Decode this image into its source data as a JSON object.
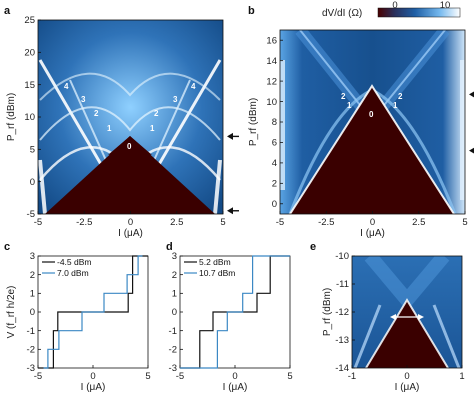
{
  "figure": {
    "panel_labels": [
      "a",
      "b",
      "c",
      "d",
      "e"
    ],
    "colorbar": {
      "label": "dV/dI (Ω)",
      "ticks": [
        "0",
        "10"
      ]
    }
  },
  "chart_data": [
    {
      "id": "a",
      "type": "heatmap",
      "xlabel": "I (μA)",
      "ylabel": "P_rf (dBm)",
      "xlim": [
        -5,
        5
      ],
      "ylim": [
        -5,
        25
      ],
      "xticks": [
        "-5",
        "-2.5",
        "0",
        "2.5",
        "5"
      ],
      "yticks": [
        "-5",
        "0",
        "5",
        "10",
        "15",
        "20",
        "25"
      ],
      "annotations": [
        "0",
        "1",
        "1",
        "2",
        "2",
        "3",
        "3",
        "4",
        "4"
      ],
      "arrows_at_prf": [
        -4.5,
        7.0
      ]
    },
    {
      "id": "b",
      "type": "heatmap",
      "xlabel": "I (μA)",
      "ylabel": "P_rf (dBm)",
      "xlim": [
        -5,
        5
      ],
      "ylim": [
        -1,
        17
      ],
      "xticks": [
        "-5",
        "-2.5",
        "0",
        "2.5",
        "5"
      ],
      "yticks": [
        "0",
        "2",
        "4",
        "6",
        "8",
        "10",
        "12",
        "14",
        "16"
      ],
      "annotations": [
        "0",
        "1",
        "1",
        "2",
        "2"
      ],
      "arrows_at_prf": [
        5.2,
        10.7
      ]
    },
    {
      "id": "c",
      "type": "line",
      "xlabel": "I (μA)",
      "ylabel": "V (f_rf h/2e)",
      "xlim": [
        -5,
        5
      ],
      "ylim": [
        -3,
        3
      ],
      "xticks": [
        "-5",
        "0",
        "5"
      ],
      "yticks": [
        "-3",
        "-2",
        "-1",
        "0",
        "1",
        "2",
        "3"
      ],
      "series": [
        {
          "name": "-4.5 dBm",
          "color": "#111111",
          "x": [
            -5.0,
            -3.6,
            -3.6,
            -3.2,
            -3.2,
            3.2,
            3.2,
            3.6,
            3.6,
            5.0
          ],
          "y": [
            -3.0,
            -3.0,
            -1.0,
            -1.0,
            0.0,
            0.0,
            1.0,
            1.0,
            3.0,
            3.0
          ]
        },
        {
          "name": "7.0 dBm",
          "color": "#3b88c4",
          "x": [
            -4.5,
            -4.1,
            -4.1,
            -3.1,
            -3.1,
            -1.0,
            -1.0,
            1.0,
            1.0,
            3.1,
            3.1,
            4.1,
            4.1,
            4.5
          ],
          "y": [
            -3.0,
            -3.0,
            -2.0,
            -2.0,
            -1.0,
            -1.0,
            0.0,
            0.0,
            1.0,
            1.0,
            2.0,
            2.0,
            3.0,
            3.0
          ]
        }
      ]
    },
    {
      "id": "d",
      "type": "line",
      "xlabel": "I (μA)",
      "ylabel": "",
      "xlim": [
        -5,
        5
      ],
      "ylim": [
        -3,
        3
      ],
      "xticks": [
        "-5",
        "0",
        "5"
      ],
      "yticks": [
        "-3",
        "-2",
        "-1",
        "0",
        "1",
        "2",
        "3"
      ],
      "series": [
        {
          "name": "5.2 dBm",
          "color": "#111111",
          "x": [
            -5.0,
            -3.2,
            -3.2,
            -2.0,
            -2.0,
            2.0,
            2.0,
            3.2,
            3.2,
            5.0
          ],
          "y": [
            -3.0,
            -3.0,
            -1.0,
            -1.0,
            0.0,
            0.0,
            1.0,
            1.0,
            3.0,
            3.0
          ]
        },
        {
          "name": "10.7 dBm",
          "color": "#3b88c4",
          "x": [
            -5.0,
            -1.6,
            -1.6,
            -0.7,
            -0.7,
            0.7,
            0.7,
            1.6,
            1.6,
            5.0
          ],
          "y": [
            -3.0,
            -3.0,
            -1.0,
            -1.0,
            0.0,
            0.0,
            1.0,
            1.0,
            3.0,
            3.0
          ]
        }
      ]
    },
    {
      "id": "e",
      "type": "heatmap",
      "xlabel": "I (μA)",
      "ylabel": "P_rf (dBm)",
      "xlim": [
        -1,
        1
      ],
      "ylim": [
        -14,
        -10
      ],
      "xticks": [
        "-1",
        "0",
        "1"
      ],
      "yticks": [
        "-14",
        "-13",
        "-12",
        "-11",
        "-10"
      ]
    }
  ]
}
